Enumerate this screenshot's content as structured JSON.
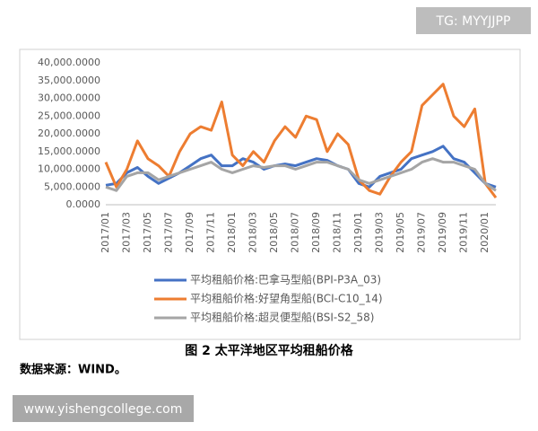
{
  "watermark": "TG: MYYJJPP",
  "caption": "图 2  太平洋地区平均租船价格",
  "source": "数据来源：WIND。",
  "website": "www.yishengcollege.com",
  "chart_data": {
    "type": "line",
    "grid": false,
    "categories": [
      "2017/01",
      null,
      "2017/03",
      null,
      "2017/05",
      null,
      "2017/07",
      null,
      "2017/09",
      null,
      "2017/11",
      null,
      "2018/01",
      null,
      "2018/03",
      null,
      "2018/05",
      null,
      "2018/07",
      null,
      "2018/09",
      null,
      "2018/11",
      null,
      "2019/01",
      null,
      "2019/03",
      null,
      "2019/05",
      null,
      "2019/07",
      null,
      "2019/09",
      null,
      "2019/11",
      null,
      "2020/01",
      null
    ],
    "ylim": [
      0,
      40000
    ],
    "yticks": [
      {
        "value": 0,
        "label": "0.0000"
      },
      {
        "value": 5000,
        "label": "5,000.0000"
      },
      {
        "value": 10000,
        "label": "10,000.0000"
      },
      {
        "value": 15000,
        "label": "15,000.0000"
      },
      {
        "value": 20000,
        "label": "20,000.0000"
      },
      {
        "value": 25000,
        "label": "25,000.0000"
      },
      {
        "value": 30000,
        "label": "30,000.0000"
      },
      {
        "value": 35000,
        "label": "35,000.0000"
      },
      {
        "value": 40000,
        "label": "40,000.0000"
      }
    ],
    "series": [
      {
        "name": "平均租船价格:巴拿马型船(BPI-P3A_03)",
        "color": "#4472c4",
        "values": [
          5500,
          6000,
          9000,
          10500,
          8000,
          6000,
          7500,
          9000,
          11000,
          13000,
          14000,
          11000,
          11000,
          13000,
          12000,
          10000,
          11000,
          11500,
          11000,
          12000,
          13000,
          12500,
          11000,
          10000,
          6000,
          5000,
          8000,
          9000,
          10000,
          13000,
          14000,
          15000,
          16500,
          13000,
          12000,
          9000,
          6000,
          5000
        ]
      },
      {
        "name": "平均租船价格:好望角型船(BCI-C10_14)",
        "color": "#ed7d31",
        "values": [
          12000,
          5000,
          10000,
          18000,
          13000,
          11000,
          8000,
          15000,
          20000,
          22000,
          21000,
          29000,
          14000,
          11000,
          15000,
          12000,
          18000,
          22000,
          19000,
          25000,
          24000,
          15000,
          20000,
          17000,
          7000,
          4000,
          3000,
          8000,
          12000,
          15000,
          28000,
          31000,
          34000,
          25000,
          22000,
          27000,
          6000,
          2000
        ]
      },
      {
        "name": "平均租船价格:超灵便型船(BSI-S2_58)",
        "color": "#a5a5a5",
        "values": [
          5000,
          4000,
          8000,
          9000,
          9000,
          7000,
          8000,
          9000,
          10000,
          11000,
          12000,
          10000,
          9000,
          10000,
          11000,
          10500,
          11000,
          11000,
          10000,
          11000,
          12000,
          12000,
          11000,
          10000,
          7000,
          6000,
          7000,
          8000,
          9000,
          10000,
          12000,
          13000,
          12000,
          12000,
          11000,
          10000,
          6000,
          4000
        ]
      }
    ]
  }
}
